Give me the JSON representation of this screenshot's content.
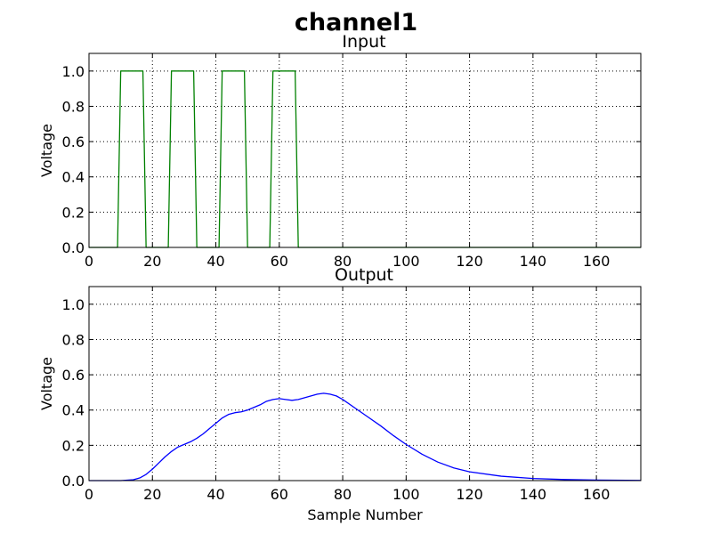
{
  "figure": {
    "title": "channel1"
  },
  "chart_data": [
    {
      "type": "line",
      "title": "Input",
      "xlabel": "",
      "ylabel": "Voltage",
      "xlim": [
        0,
        174
      ],
      "ylim": [
        0,
        1.1
      ],
      "xticks": [
        "0",
        "20",
        "40",
        "60",
        "80",
        "100",
        "120",
        "140",
        "160"
      ],
      "yticks": [
        "0.0",
        "0.2",
        "0.4",
        "0.6",
        "0.8",
        "1.0"
      ],
      "grid": true,
      "series": [
        {
          "color": "#008000",
          "x": [
            0,
            9,
            10,
            17,
            18,
            25,
            26,
            33,
            34,
            41,
            42,
            49,
            50,
            57,
            58,
            65,
            66,
            174
          ],
          "y": [
            0,
            0,
            1,
            1,
            0,
            0,
            1,
            1,
            0,
            0,
            1,
            1,
            0,
            0,
            1,
            1,
            0,
            0
          ]
        }
      ]
    },
    {
      "type": "line",
      "title": "Output",
      "xlabel": "Sample Number",
      "ylabel": "Voltage",
      "xlim": [
        0,
        174
      ],
      "ylim": [
        0,
        1.1
      ],
      "xticks": [
        "0",
        "20",
        "40",
        "60",
        "80",
        "100",
        "120",
        "140",
        "160"
      ],
      "yticks": [
        "0.0",
        "0.2",
        "0.4",
        "0.6",
        "0.8",
        "1.0"
      ],
      "grid": true,
      "series": [
        {
          "color": "#0000ff",
          "x": [
            0,
            10,
            14,
            16,
            18,
            20,
            22,
            24,
            26,
            28,
            30,
            32,
            34,
            36,
            38,
            40,
            42,
            44,
            46,
            48,
            50,
            52,
            54,
            56,
            58,
            60,
            62,
            64,
            66,
            68,
            70,
            72,
            74,
            76,
            78,
            80,
            84,
            88,
            92,
            96,
            100,
            105,
            110,
            115,
            120,
            130,
            140,
            150,
            160,
            174
          ],
          "y": [
            0,
            0,
            0.005,
            0.015,
            0.035,
            0.065,
            0.1,
            0.135,
            0.165,
            0.19,
            0.205,
            0.22,
            0.24,
            0.265,
            0.295,
            0.325,
            0.355,
            0.375,
            0.385,
            0.39,
            0.4,
            0.415,
            0.43,
            0.45,
            0.46,
            0.465,
            0.46,
            0.455,
            0.46,
            0.47,
            0.48,
            0.49,
            0.495,
            0.49,
            0.48,
            0.46,
            0.41,
            0.36,
            0.31,
            0.255,
            0.205,
            0.15,
            0.105,
            0.072,
            0.05,
            0.025,
            0.012,
            0.006,
            0.003,
            0.001
          ]
        }
      ]
    }
  ]
}
